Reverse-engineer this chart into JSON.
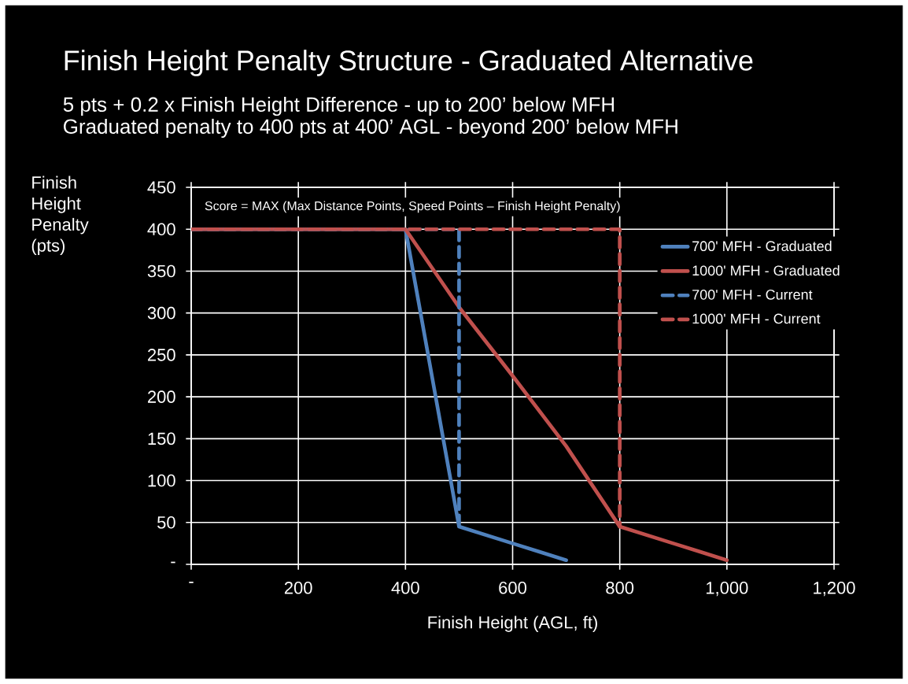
{
  "chart_data": {
    "type": "line",
    "title": "Finish Height Penalty Structure - Graduated Alternative",
    "subtitle": "5 pts + 0.2 x Finish Height Difference - up to 200’ below MFH",
    "annotations": [
      "Graduated penalty to 400 pts at 400’ AGL - beyond 200’ below MFH",
      "Score = MAX (Max  Distance Points, Speed Points – Finish Height Penalty)"
    ],
    "xlabel": "Finish Height (AGL, ft)",
    "ylabel": "Finish Height Penalty (pts)",
    "series": [
      {
        "name": "700' MFH - Graduated",
        "color": "#4f81bd",
        "line_style": "solid",
        "x": [
          0,
          400,
          500,
          550,
          600,
          650,
          700
        ],
        "values": [
          400,
          400,
          45,
          35,
          25,
          15,
          5
        ]
      },
      {
        "name": "1000' MFH - Graduated",
        "color": "#c0504d",
        "line_style": "solid",
        "x": [
          0,
          400,
          500,
          600,
          700,
          800,
          850,
          900,
          950,
          1000
        ],
        "values": [
          400,
          400,
          307,
          225,
          141,
          45,
          35,
          25,
          15,
          5
        ]
      },
      {
        "name": "700' MFH - Current",
        "color": "#4f81bd",
        "line_style": "dashed",
        "x": [
          0,
          500,
          500
        ],
        "values": [
          400,
          400,
          45
        ]
      },
      {
        "name": "1000' MFH - Current",
        "color": "#c0504d",
        "line_style": "dashed",
        "x": [
          0,
          800,
          800
        ],
        "values": [
          400,
          400,
          45
        ]
      }
    ],
    "xlim": [
      0,
      1200
    ],
    "ylim": [
      0,
      450
    ],
    "xticks": [
      {
        "value": 0,
        "label": "-"
      },
      200,
      400,
      600,
      800,
      {
        "value": 1000,
        "label": "1,000"
      },
      {
        "value": 1200,
        "label": "1,200"
      }
    ],
    "yticks": [
      {
        "value": 0,
        "label": "-"
      },
      50,
      100,
      150,
      200,
      250,
      300,
      350,
      400,
      450
    ],
    "grid": true,
    "legend": "right"
  }
}
